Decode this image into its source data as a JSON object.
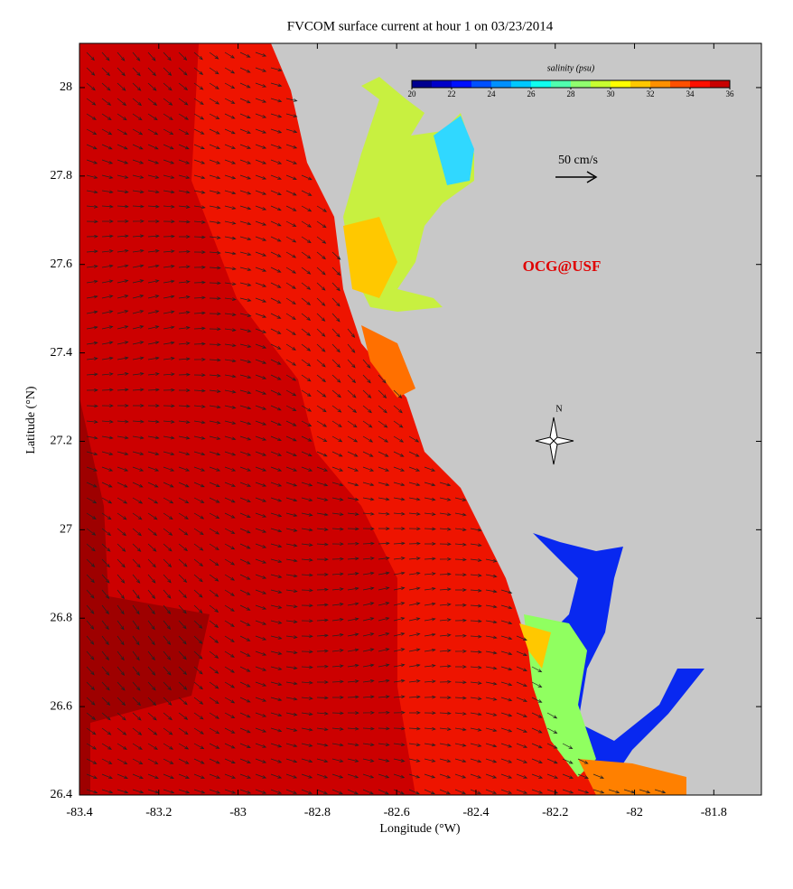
{
  "chart_data": {
    "type": "vector-map",
    "title": "FVCOM surface current at hour 1 on 03/23/2014",
    "xlabel": "Longitude (°W)",
    "ylabel": "Latitude (°N)",
    "xlim": [
      -83.4,
      -81.68
    ],
    "ylim": [
      26.4,
      28.1
    ],
    "xticks": [
      -83.4,
      -83.2,
      -83,
      -82.8,
      -82.6,
      -82.4,
      -82.2,
      -82,
      -81.8
    ],
    "yticks": [
      26.4,
      26.6,
      26.8,
      27,
      27.2,
      27.4,
      27.6,
      27.8,
      28
    ],
    "colorbar": {
      "label": "salinity (psu)",
      "range": [
        20,
        36
      ],
      "ticks": [
        20,
        22,
        24,
        26,
        28,
        30,
        32,
        34,
        36
      ],
      "colors": [
        "#00008f",
        "#0000c8",
        "#0010ff",
        "#0050ff",
        "#0090ff",
        "#00c8ff",
        "#10ffef",
        "#50ffaf",
        "#90ff6f",
        "#c8ff30",
        "#ffff00",
        "#ffc800",
        "#ff9000",
        "#ff5000",
        "#ff1000",
        "#c80000"
      ]
    },
    "scale_label": "50 cm/s",
    "watermark": "OCG@USF",
    "north_label": "N"
  }
}
